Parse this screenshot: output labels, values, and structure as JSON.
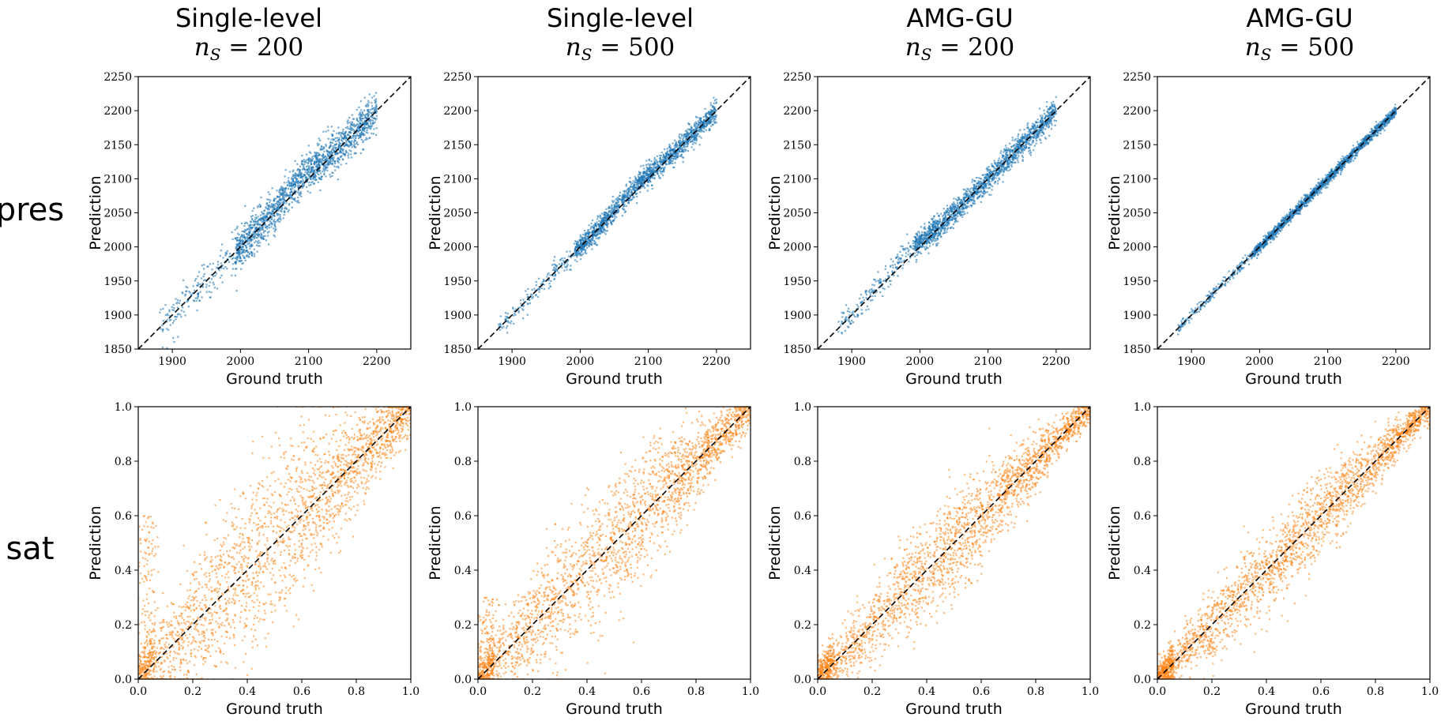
{
  "columns": [
    {
      "title": "Single-level",
      "n_s": "200"
    },
    {
      "title": "Single-level",
      "n_s": "500"
    },
    {
      "title": "AMG-GU",
      "n_s": "200"
    },
    {
      "title": "AMG-GU",
      "n_s": "500"
    }
  ],
  "rows": [
    {
      "label": "pres",
      "color": "#1f77b4"
    },
    {
      "label": "sat",
      "color": "#ff7f0e"
    }
  ],
  "chart_data": [
    {
      "type": "scatter",
      "variable": "pres",
      "method": "Single-level",
      "n_s": 200,
      "xlabel": "Ground truth",
      "ylabel": "Prediction",
      "xlim": [
        1850,
        2250
      ],
      "ylim": [
        1850,
        2250
      ],
      "xticks": [
        1900,
        2000,
        2100,
        2200
      ],
      "yticks": [
        1850,
        1900,
        1950,
        2000,
        2050,
        2100,
        2150,
        2200,
        2250
      ],
      "reference_line": "y = x (dashed)",
      "data_range": [
        1880,
        2200
      ],
      "spread": 14,
      "bias": [
        {
          "at": 2090,
          "offset": 12
        }
      ]
    },
    {
      "type": "scatter",
      "variable": "pres",
      "method": "Single-level",
      "n_s": 500,
      "xlabel": "Ground truth",
      "ylabel": "Prediction",
      "xlim": [
        1850,
        2250
      ],
      "ylim": [
        1850,
        2250
      ],
      "xticks": [
        1900,
        2000,
        2100,
        2200
      ],
      "yticks": [
        1850,
        1900,
        1950,
        2000,
        2050,
        2100,
        2150,
        2200,
        2250
      ],
      "reference_line": "y = x (dashed)",
      "data_range": [
        1880,
        2200
      ],
      "spread": 8,
      "bias": [
        {
          "at": 2080,
          "offset": 8
        }
      ]
    },
    {
      "type": "scatter",
      "variable": "pres",
      "method": "AMG-GU",
      "n_s": 200,
      "xlabel": "Ground truth",
      "ylabel": "Prediction",
      "xlim": [
        1850,
        2250
      ],
      "ylim": [
        1850,
        2250
      ],
      "xticks": [
        1900,
        2000,
        2100,
        2200
      ],
      "yticks": [
        1850,
        1900,
        1950,
        2000,
        2050,
        2100,
        2150,
        2200,
        2250
      ],
      "reference_line": "y = x (dashed)",
      "data_range": [
        1880,
        2200
      ],
      "spread": 9,
      "bias": [
        {
          "at": 1980,
          "offset": 10
        }
      ]
    },
    {
      "type": "scatter",
      "variable": "pres",
      "method": "AMG-GU",
      "n_s": 500,
      "xlabel": "Ground truth",
      "ylabel": "Prediction",
      "xlim": [
        1850,
        2250
      ],
      "ylim": [
        1850,
        2250
      ],
      "xticks": [
        1900,
        2000,
        2100,
        2200
      ],
      "yticks": [
        1850,
        1900,
        1950,
        2000,
        2050,
        2100,
        2150,
        2200,
        2250
      ],
      "reference_line": "y = x (dashed)",
      "data_range": [
        1880,
        2200
      ],
      "spread": 4,
      "bias": []
    },
    {
      "type": "scatter",
      "variable": "sat",
      "method": "Single-level",
      "n_s": 200,
      "xlabel": "Ground truth",
      "ylabel": "Prediction",
      "xlim": [
        0.0,
        1.0
      ],
      "ylim": [
        0.0,
        1.0
      ],
      "xticks": [
        0.0,
        0.2,
        0.4,
        0.6,
        0.8,
        1.0
      ],
      "yticks": [
        0.0,
        0.2,
        0.4,
        0.6,
        0.8,
        1.0
      ],
      "reference_line": "y = x (dashed)",
      "data_range": [
        0.0,
        1.0
      ],
      "spread": 0.16,
      "bias": []
    },
    {
      "type": "scatter",
      "variable": "sat",
      "method": "Single-level",
      "n_s": 500,
      "xlabel": "Ground truth",
      "ylabel": "Prediction",
      "xlim": [
        0.0,
        1.0
      ],
      "ylim": [
        0.0,
        1.0
      ],
      "xticks": [
        0.0,
        0.2,
        0.4,
        0.6,
        0.8,
        1.0
      ],
      "yticks": [
        0.0,
        0.2,
        0.4,
        0.6,
        0.8,
        1.0
      ],
      "reference_line": "y = x (dashed)",
      "data_range": [
        0.0,
        1.0
      ],
      "spread": 0.12,
      "bias": []
    },
    {
      "type": "scatter",
      "variable": "sat",
      "method": "AMG-GU",
      "n_s": 200,
      "xlabel": "Ground truth",
      "ylabel": "Prediction",
      "xlim": [
        0.0,
        1.0
      ],
      "ylim": [
        0.0,
        1.0
      ],
      "xticks": [
        0.0,
        0.2,
        0.4,
        0.6,
        0.8,
        1.0
      ],
      "yticks": [
        0.0,
        0.2,
        0.4,
        0.6,
        0.8,
        1.0
      ],
      "reference_line": "y = x (dashed)",
      "data_range": [
        0.0,
        1.0
      ],
      "spread": 0.09,
      "bias": []
    },
    {
      "type": "scatter",
      "variable": "sat",
      "method": "AMG-GU",
      "n_s": 500,
      "xlabel": "Ground truth",
      "ylabel": "Prediction",
      "xlim": [
        0.0,
        1.0
      ],
      "ylim": [
        0.0,
        1.0
      ],
      "xticks": [
        0.0,
        0.2,
        0.4,
        0.6,
        0.8,
        1.0
      ],
      "yticks": [
        0.0,
        0.2,
        0.4,
        0.6,
        0.8,
        1.0
      ],
      "reference_line": "y = x (dashed)",
      "data_range": [
        0.0,
        1.0
      ],
      "spread": 0.08,
      "bias": []
    }
  ]
}
